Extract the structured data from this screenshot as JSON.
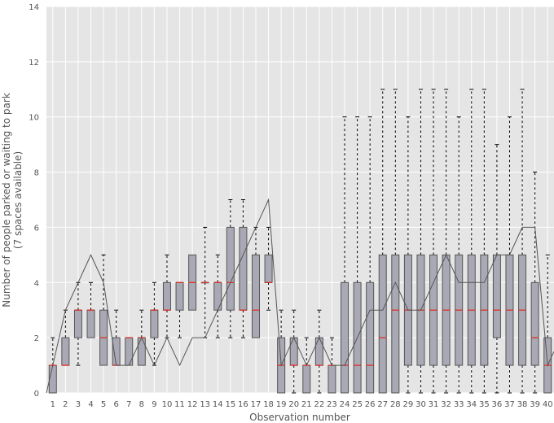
{
  "chart_data": {
    "type": "box",
    "xlabel": "Observation number",
    "ylabel_line1": "Number of people parked or waiting to park",
    "ylabel_line2": "(7 spaces available)",
    "ylim": [
      0,
      14
    ],
    "yticks": [
      0,
      2,
      4,
      6,
      8,
      10,
      12,
      14
    ],
    "categories": [
      "1",
      "2",
      "3",
      "4",
      "5",
      "6",
      "7",
      "8",
      "9",
      "10",
      "11",
      "12",
      "13",
      "14",
      "15",
      "16",
      "17",
      "18",
      "19",
      "20",
      "21",
      "22",
      "23",
      "24",
      "25",
      "26",
      "27",
      "28",
      "29",
      "30",
      "31",
      "32",
      "33",
      "34",
      "35",
      "36",
      "37",
      "38",
      "39",
      "40"
    ],
    "grid": true,
    "boxes": [
      {
        "whislo": 0,
        "q1": 0,
        "med": 1,
        "q3": 1,
        "whishi": 2
      },
      {
        "whislo": 1,
        "q1": 1,
        "med": 1,
        "q3": 2,
        "whishi": 3
      },
      {
        "whislo": 1,
        "q1": 2,
        "med": 3,
        "q3": 3,
        "whishi": 4
      },
      {
        "whislo": 2,
        "q1": 2,
        "med": 3,
        "q3": 3,
        "whishi": 4
      },
      {
        "whislo": 1,
        "q1": 1,
        "med": 2,
        "q3": 3,
        "whishi": 5
      },
      {
        "whislo": 1,
        "q1": 1,
        "med": 1,
        "q3": 2,
        "whishi": 3
      },
      {
        "whislo": 1,
        "q1": 1,
        "med": 2,
        "q3": 2,
        "whishi": 2
      },
      {
        "whislo": 1,
        "q1": 1,
        "med": 2,
        "q3": 2,
        "whishi": 3
      },
      {
        "whislo": 1,
        "q1": 2,
        "med": 3,
        "q3": 3,
        "whishi": 4
      },
      {
        "whislo": 2,
        "q1": 3,
        "med": 3,
        "q3": 4,
        "whishi": 5
      },
      {
        "whislo": 2,
        "q1": 3,
        "med": 4,
        "q3": 4,
        "whishi": 4
      },
      {
        "whislo": 3,
        "q1": 3,
        "med": 4,
        "q3": 5,
        "whishi": 5
      },
      {
        "whislo": 2,
        "q1": 4,
        "med": 4,
        "q3": 4,
        "whishi": 6
      },
      {
        "whislo": 2,
        "q1": 3,
        "med": 4,
        "q3": 4,
        "whishi": 5
      },
      {
        "whislo": 2,
        "q1": 3,
        "med": 4,
        "q3": 6,
        "whishi": 7
      },
      {
        "whislo": 2,
        "q1": 3,
        "med": 3,
        "q3": 6,
        "whishi": 7
      },
      {
        "whislo": 2,
        "q1": 2,
        "med": 3,
        "q3": 5,
        "whishi": 6
      },
      {
        "whislo": 3,
        "q1": 4,
        "med": 4,
        "q3": 5,
        "whishi": 6
      },
      {
        "whislo": 0,
        "q1": 0,
        "med": 1,
        "q3": 2,
        "whishi": 3
      },
      {
        "whislo": 0,
        "q1": 1,
        "med": 1,
        "q3": 2,
        "whishi": 3
      },
      {
        "whislo": 0,
        "q1": 0,
        "med": 1,
        "q3": 1,
        "whishi": 2
      },
      {
        "whislo": 0,
        "q1": 1,
        "med": 1,
        "q3": 2,
        "whishi": 3
      },
      {
        "whislo": 0,
        "q1": 0,
        "med": 1,
        "q3": 1,
        "whishi": 2
      },
      {
        "whislo": 0,
        "q1": 0,
        "med": 1,
        "q3": 4,
        "whishi": 10
      },
      {
        "whislo": 0,
        "q1": 0,
        "med": 1,
        "q3": 4,
        "whishi": 10
      },
      {
        "whislo": 0,
        "q1": 0,
        "med": 1,
        "q3": 4,
        "whishi": 10
      },
      {
        "whislo": 0,
        "q1": 0,
        "med": 2,
        "q3": 5,
        "whishi": 11
      },
      {
        "whislo": 0,
        "q1": 0,
        "med": 3,
        "q3": 5,
        "whishi": 11
      },
      {
        "whislo": 0,
        "q1": 1,
        "med": 3,
        "q3": 5,
        "whishi": 10
      },
      {
        "whislo": 0,
        "q1": 1,
        "med": 3,
        "q3": 5,
        "whishi": 11
      },
      {
        "whislo": 0,
        "q1": 1,
        "med": 3,
        "q3": 5,
        "whishi": 11
      },
      {
        "whislo": 0,
        "q1": 1,
        "med": 3,
        "q3": 5,
        "whishi": 11
      },
      {
        "whislo": 0,
        "q1": 1,
        "med": 3,
        "q3": 5,
        "whishi": 10
      },
      {
        "whislo": 0,
        "q1": 1,
        "med": 3,
        "q3": 5,
        "whishi": 11
      },
      {
        "whislo": 0,
        "q1": 1,
        "med": 3,
        "q3": 5,
        "whishi": 11
      },
      {
        "whislo": 0,
        "q1": 2,
        "med": 3,
        "q3": 5,
        "whishi": 9
      },
      {
        "whislo": 0,
        "q1": 1,
        "med": 3,
        "q3": 5,
        "whishi": 10
      },
      {
        "whislo": 0,
        "q1": 1,
        "med": 3,
        "q3": 5,
        "whishi": 11
      },
      {
        "whislo": 0,
        "q1": 1,
        "med": 2,
        "q3": 4,
        "whishi": 8
      },
      {
        "whislo": 0,
        "q1": 0,
        "med": 1,
        "q3": 2,
        "whishi": 5
      }
    ],
    "line": {
      "x": [
        0.5,
        1,
        2,
        3,
        4,
        5,
        6,
        7,
        8,
        9,
        10,
        11,
        12,
        13,
        14,
        15,
        16,
        17,
        18,
        19,
        20,
        21,
        22,
        23,
        24,
        25,
        26,
        27,
        28,
        29,
        30,
        31,
        32,
        33,
        34,
        35,
        36,
        37,
        38,
        39,
        40,
        40.5
      ],
      "y": [
        0,
        1,
        3,
        4,
        5,
        4,
        1,
        1,
        2,
        1,
        2,
        1,
        2,
        2,
        3,
        4,
        5,
        6,
        7,
        1,
        2,
        1,
        2,
        1,
        1,
        2,
        3,
        3,
        4,
        3,
        3,
        4,
        5,
        4,
        4,
        4,
        5,
        5,
        6,
        6,
        1,
        1.5
      ]
    },
    "colors": {
      "plot_background": "#e5e5e5",
      "grid": "#ffffff",
      "box_fill": "#a8a9b4",
      "box_edge": "#555555",
      "median": "#e2261c",
      "whisker": "#000000",
      "line": "#555555",
      "tick_text": "#555555"
    }
  }
}
